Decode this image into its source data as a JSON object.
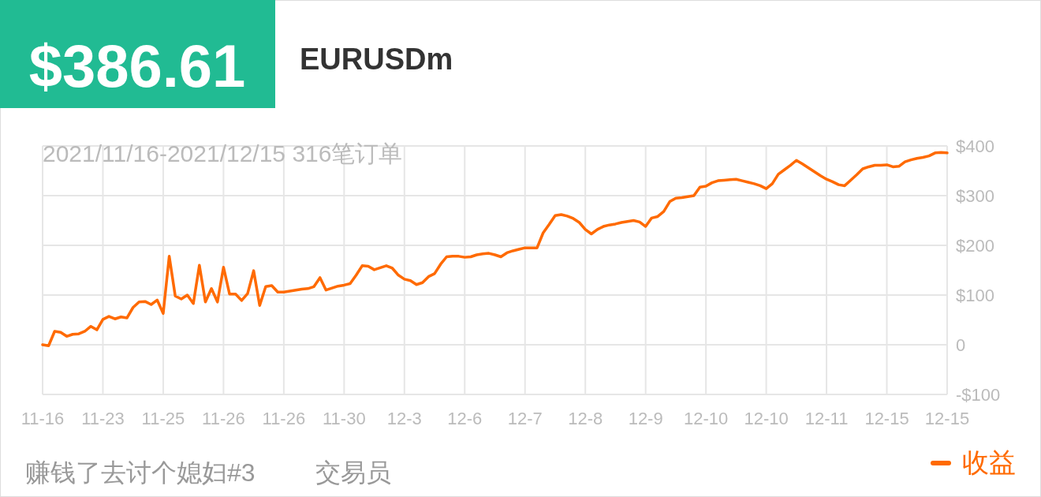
{
  "chart_data": {
    "type": "line",
    "title": "EURUSDm",
    "subtitle": "2021/11/16-2021/12/15 316笔订单",
    "annotations": [
      "$386.61",
      "赚钱了去讨个媳妇#3",
      "交易员"
    ],
    "categories": [
      "11-16",
      null,
      null,
      null,
      null,
      null,
      null,
      null,
      null,
      null,
      "11-23",
      null,
      null,
      null,
      null,
      null,
      null,
      null,
      null,
      null,
      "11-25",
      null,
      null,
      null,
      null,
      null,
      null,
      null,
      null,
      null,
      "11-26",
      null,
      null,
      null,
      null,
      null,
      null,
      null,
      null,
      null,
      "11-26",
      null,
      null,
      null,
      null,
      null,
      null,
      null,
      null,
      null,
      "11-30",
      null,
      null,
      null,
      null,
      null,
      null,
      null,
      null,
      null,
      "12-3",
      null,
      null,
      null,
      null,
      null,
      null,
      null,
      null,
      null,
      "12-6",
      null,
      null,
      null,
      null,
      null,
      null,
      null,
      null,
      null,
      "12-7",
      null,
      null,
      null,
      null,
      null,
      null,
      null,
      null,
      null,
      "12-8",
      null,
      null,
      null,
      null,
      null,
      null,
      null,
      null,
      null,
      "12-9",
      null,
      null,
      null,
      null,
      null,
      null,
      null,
      null,
      null,
      "12-10",
      null,
      null,
      null,
      null,
      null,
      null,
      null,
      null,
      null,
      "12-10",
      null,
      null,
      null,
      null,
      null,
      null,
      null,
      null,
      null,
      "12-11",
      null,
      null,
      null,
      null,
      null,
      null,
      null,
      null,
      null,
      "12-15",
      null,
      null,
      null,
      null,
      null,
      null,
      null,
      null,
      null,
      "12-15"
    ],
    "ylim": [
      -100,
      400
    ],
    "yticks": [
      {
        "value": -100,
        "label": "-$100"
      },
      {
        "value": 0,
        "label": "0"
      },
      {
        "value": 100,
        "label": "$100"
      },
      {
        "value": 200,
        "label": "$200"
      },
      {
        "value": 300,
        "label": "$300"
      },
      {
        "value": 400,
        "label": "$400"
      }
    ],
    "grid": true,
    "legend": "bottom right",
    "marker": "none",
    "line_style": "solid",
    "series": [
      {
        "name": "收益",
        "color": "#ff6a00",
        "values": [
          0,
          -2,
          27,
          25,
          17,
          21,
          22,
          27,
          37,
          30,
          51,
          57,
          52,
          56,
          54,
          75,
          86,
          87,
          81,
          90,
          63,
          178,
          98,
          92,
          100,
          83,
          160,
          86,
          113,
          86,
          156,
          102,
          102,
          89,
          103,
          149,
          79,
          117,
          119,
          106,
          106,
          108,
          110,
          112,
          113,
          117,
          135,
          110,
          114,
          118,
          120,
          123,
          140,
          159,
          158,
          151,
          155,
          159,
          154,
          140,
          132,
          129,
          121,
          125,
          137,
          143,
          162,
          177,
          178,
          178,
          176,
          177,
          181,
          183,
          184,
          181,
          177,
          185,
          189,
          192,
          195,
          195,
          195,
          225,
          242,
          260,
          262,
          259,
          254,
          246,
          232,
          223,
          232,
          238,
          241,
          243,
          246,
          248,
          250,
          247,
          238,
          255,
          258,
          268,
          288,
          295,
          296,
          298,
          300,
          317,
          319,
          326,
          330,
          331,
          332,
          333,
          330,
          327,
          324,
          320,
          314,
          324,
          343,
          352,
          361,
          371,
          364,
          356,
          348,
          340,
          333,
          328,
          322,
          320,
          331,
          342,
          354,
          358,
          361,
          361,
          362,
          358,
          359,
          368,
          372,
          375,
          377,
          380,
          386,
          387,
          386
        ]
      }
    ]
  }
}
